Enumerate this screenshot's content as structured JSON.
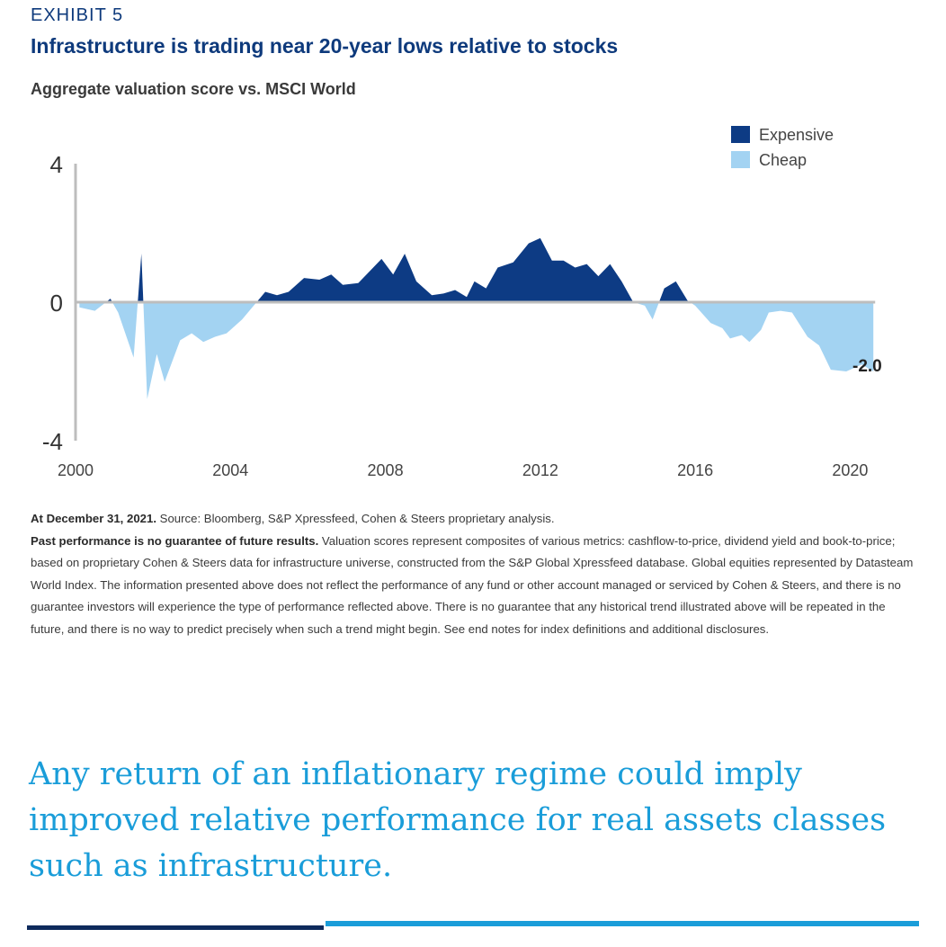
{
  "header": {
    "exhibit_label": "EXHIBIT 5",
    "title": "Infrastructure is trading near 20-year lows relative to stocks",
    "subtitle": "Aggregate valuation score vs. MSCI World"
  },
  "colors": {
    "expensive": "#0d3b84",
    "cheap": "#a3d3f2",
    "axis": "#bdbdbd",
    "title": "#0e3a7c",
    "callout": "#1a9dd9"
  },
  "chart_data": {
    "type": "area",
    "title": "Aggregate valuation score vs. MSCI World",
    "xlabel": "",
    "ylabel": "",
    "xlim": [
      2000,
      2021.5
    ],
    "ylim": [
      -4,
      4
    ],
    "x_ticks": [
      2000,
      2004,
      2008,
      2012,
      2016,
      2020
    ],
    "y_ticks": [
      4,
      0,
      -4
    ],
    "grid": false,
    "legend": {
      "position": "top-right",
      "entries": [
        "Expensive",
        "Cheap"
      ]
    },
    "series": [
      {
        "name": "Aggregate valuation score",
        "x": [
          2000.1,
          2000.5,
          2000.9,
          2001.1,
          2001.5,
          2001.7,
          2001.85,
          2002.1,
          2002.3,
          2002.7,
          2003.0,
          2003.3,
          2003.6,
          2003.9,
          2004.3,
          2004.6,
          2004.9,
          2005.2,
          2005.5,
          2005.9,
          2006.3,
          2006.6,
          2006.9,
          2007.3,
          2007.6,
          2007.9,
          2008.2,
          2008.5,
          2008.8,
          2009.2,
          2009.5,
          2009.8,
          2010.1,
          2010.3,
          2010.6,
          2010.9,
          2011.3,
          2011.7,
          2012.0,
          2012.3,
          2012.6,
          2012.9,
          2013.2,
          2013.5,
          2013.8,
          2014.1,
          2014.4,
          2014.7,
          2014.9,
          2015.2,
          2015.5,
          2015.8,
          2016.0,
          2016.4,
          2016.7,
          2016.9,
          2017.2,
          2017.4,
          2017.7,
          2017.9,
          2018.2,
          2018.5,
          2018.9,
          2019.2,
          2019.5,
          2019.9,
          2020.3,
          2020.6
        ],
        "y": [
          -0.15,
          -0.25,
          0.1,
          -0.3,
          -1.6,
          1.4,
          -2.8,
          -1.5,
          -2.3,
          -1.1,
          -0.9,
          -1.15,
          -1.0,
          -0.9,
          -0.5,
          -0.1,
          0.3,
          0.2,
          0.3,
          0.7,
          0.65,
          0.8,
          0.5,
          0.55,
          0.9,
          1.25,
          0.8,
          1.4,
          0.6,
          0.2,
          0.25,
          0.35,
          0.15,
          0.6,
          0.4,
          1.0,
          1.15,
          1.7,
          1.85,
          1.2,
          1.2,
          1.0,
          1.1,
          0.75,
          1.1,
          0.6,
          0.0,
          -0.1,
          -0.5,
          0.4,
          0.6,
          0.05,
          -0.1,
          -0.6,
          -0.75,
          -1.05,
          -0.95,
          -1.15,
          -0.8,
          -0.3,
          -0.25,
          -0.3,
          -1.0,
          -1.25,
          -1.95,
          -2.0,
          -1.8,
          -2.0
        ]
      }
    ],
    "annotations": [
      {
        "text": "-2.0",
        "x": 2021.2,
        "y": -2.0
      }
    ]
  },
  "footnote": {
    "date_bold": "At December 31, 2021.",
    "source": " Source: Bloomberg, S&P Xpressfeed, Cohen & Steers proprietary analysis.",
    "disclaimer_bold": "Past performance is no guarantee of future results.",
    "disclaimer": " Valuation scores represent composites of various metrics: cashflow-to-price, dividend yield and book-to-price; based on proprietary Cohen & Steers data for infrastructure universe, constructed from the S&P Global Xpressfeed database. Global equities represented by Datasteam World Index. The information presented above does not reflect the performance of any fund or other account managed or serviced by Cohen & Steers, and there is no guarantee investors will experience the type of performance reflected above. There is no guarantee that any historical trend illustrated above will be repeated in the future, and there is no way to predict precisely when such a trend might begin. See end notes for index definitions and additional disclosures."
  },
  "callout": {
    "text": "Any return of an inflationary regime could imply improved relative performance for real assets classes such as infrastructure."
  }
}
